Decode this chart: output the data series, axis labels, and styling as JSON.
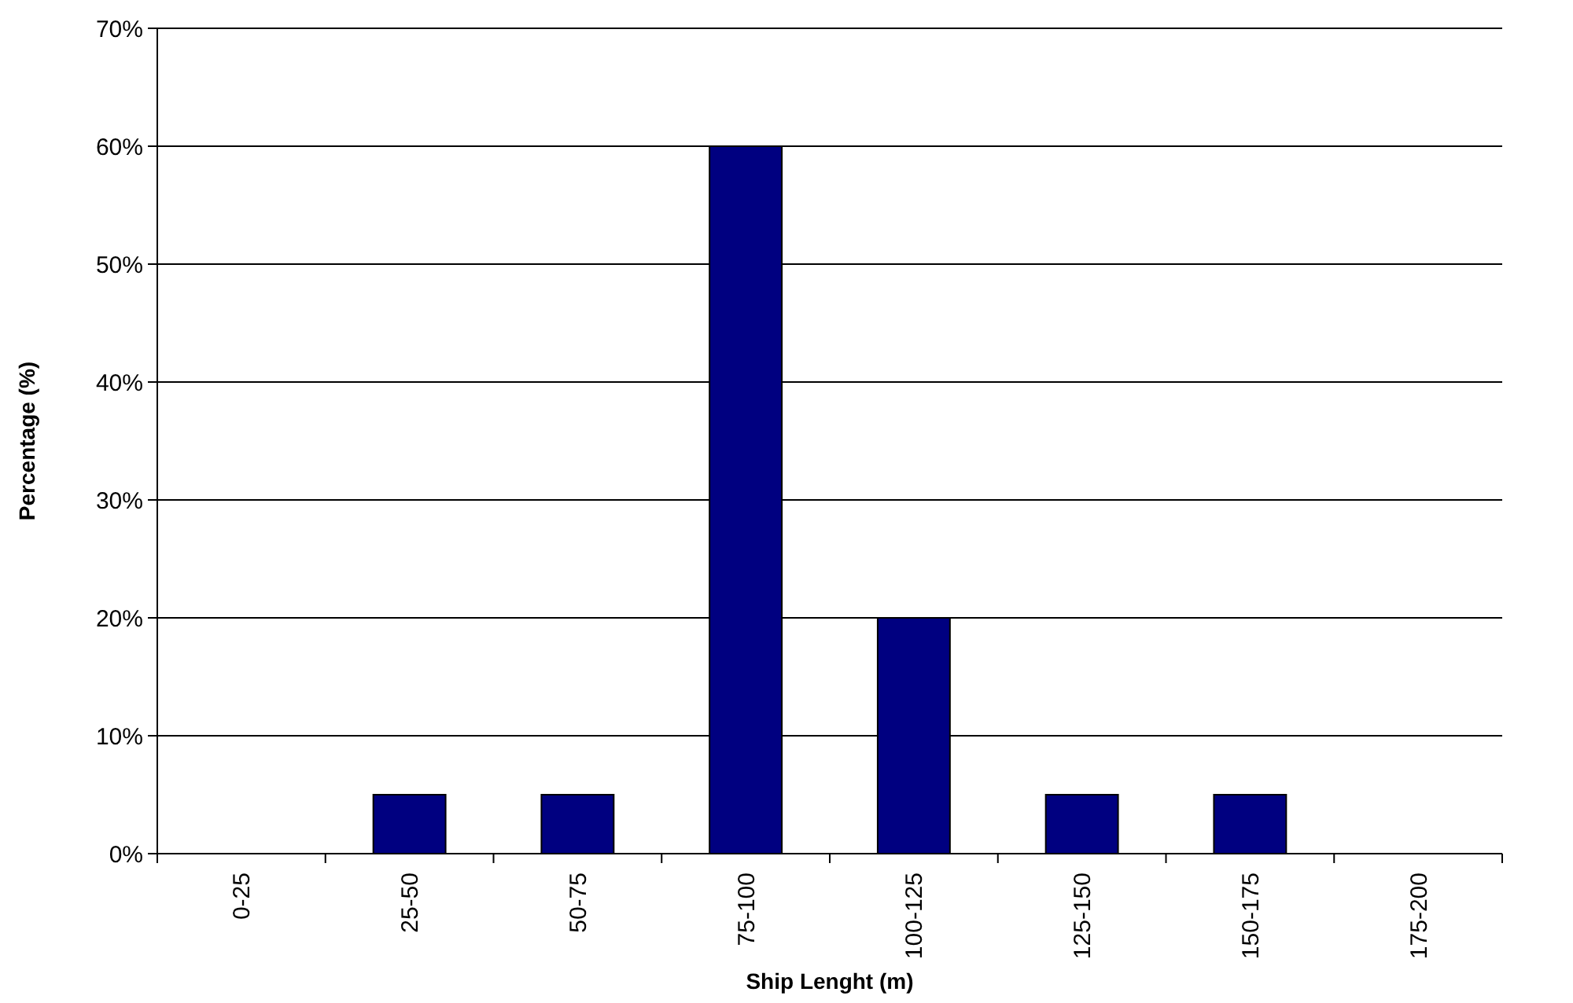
{
  "chart_data": {
    "type": "bar",
    "xlabel": "Ship Lenght (m)",
    "ylabel": "Percentage (%)",
    "categories": [
      "0-25",
      "25-50",
      "50-75",
      "75-100",
      "100-125",
      "125-150",
      "150-175",
      "175-200"
    ],
    "values": [
      0,
      5,
      5,
      60,
      20,
      5,
      5,
      0
    ],
    "color": "#000080",
    "ylim": [
      0,
      70
    ],
    "yticks": [
      {
        "value": 0,
        "label": "0%"
      },
      {
        "value": 10,
        "label": "10%"
      },
      {
        "value": 20,
        "label": "20%"
      },
      {
        "value": 30,
        "label": "30%"
      },
      {
        "value": 40,
        "label": "40%"
      },
      {
        "value": 50,
        "label": "50%"
      },
      {
        "value": 60,
        "label": "60%"
      },
      {
        "value": 70,
        "label": "70%"
      }
    ],
    "grid": "y"
  }
}
